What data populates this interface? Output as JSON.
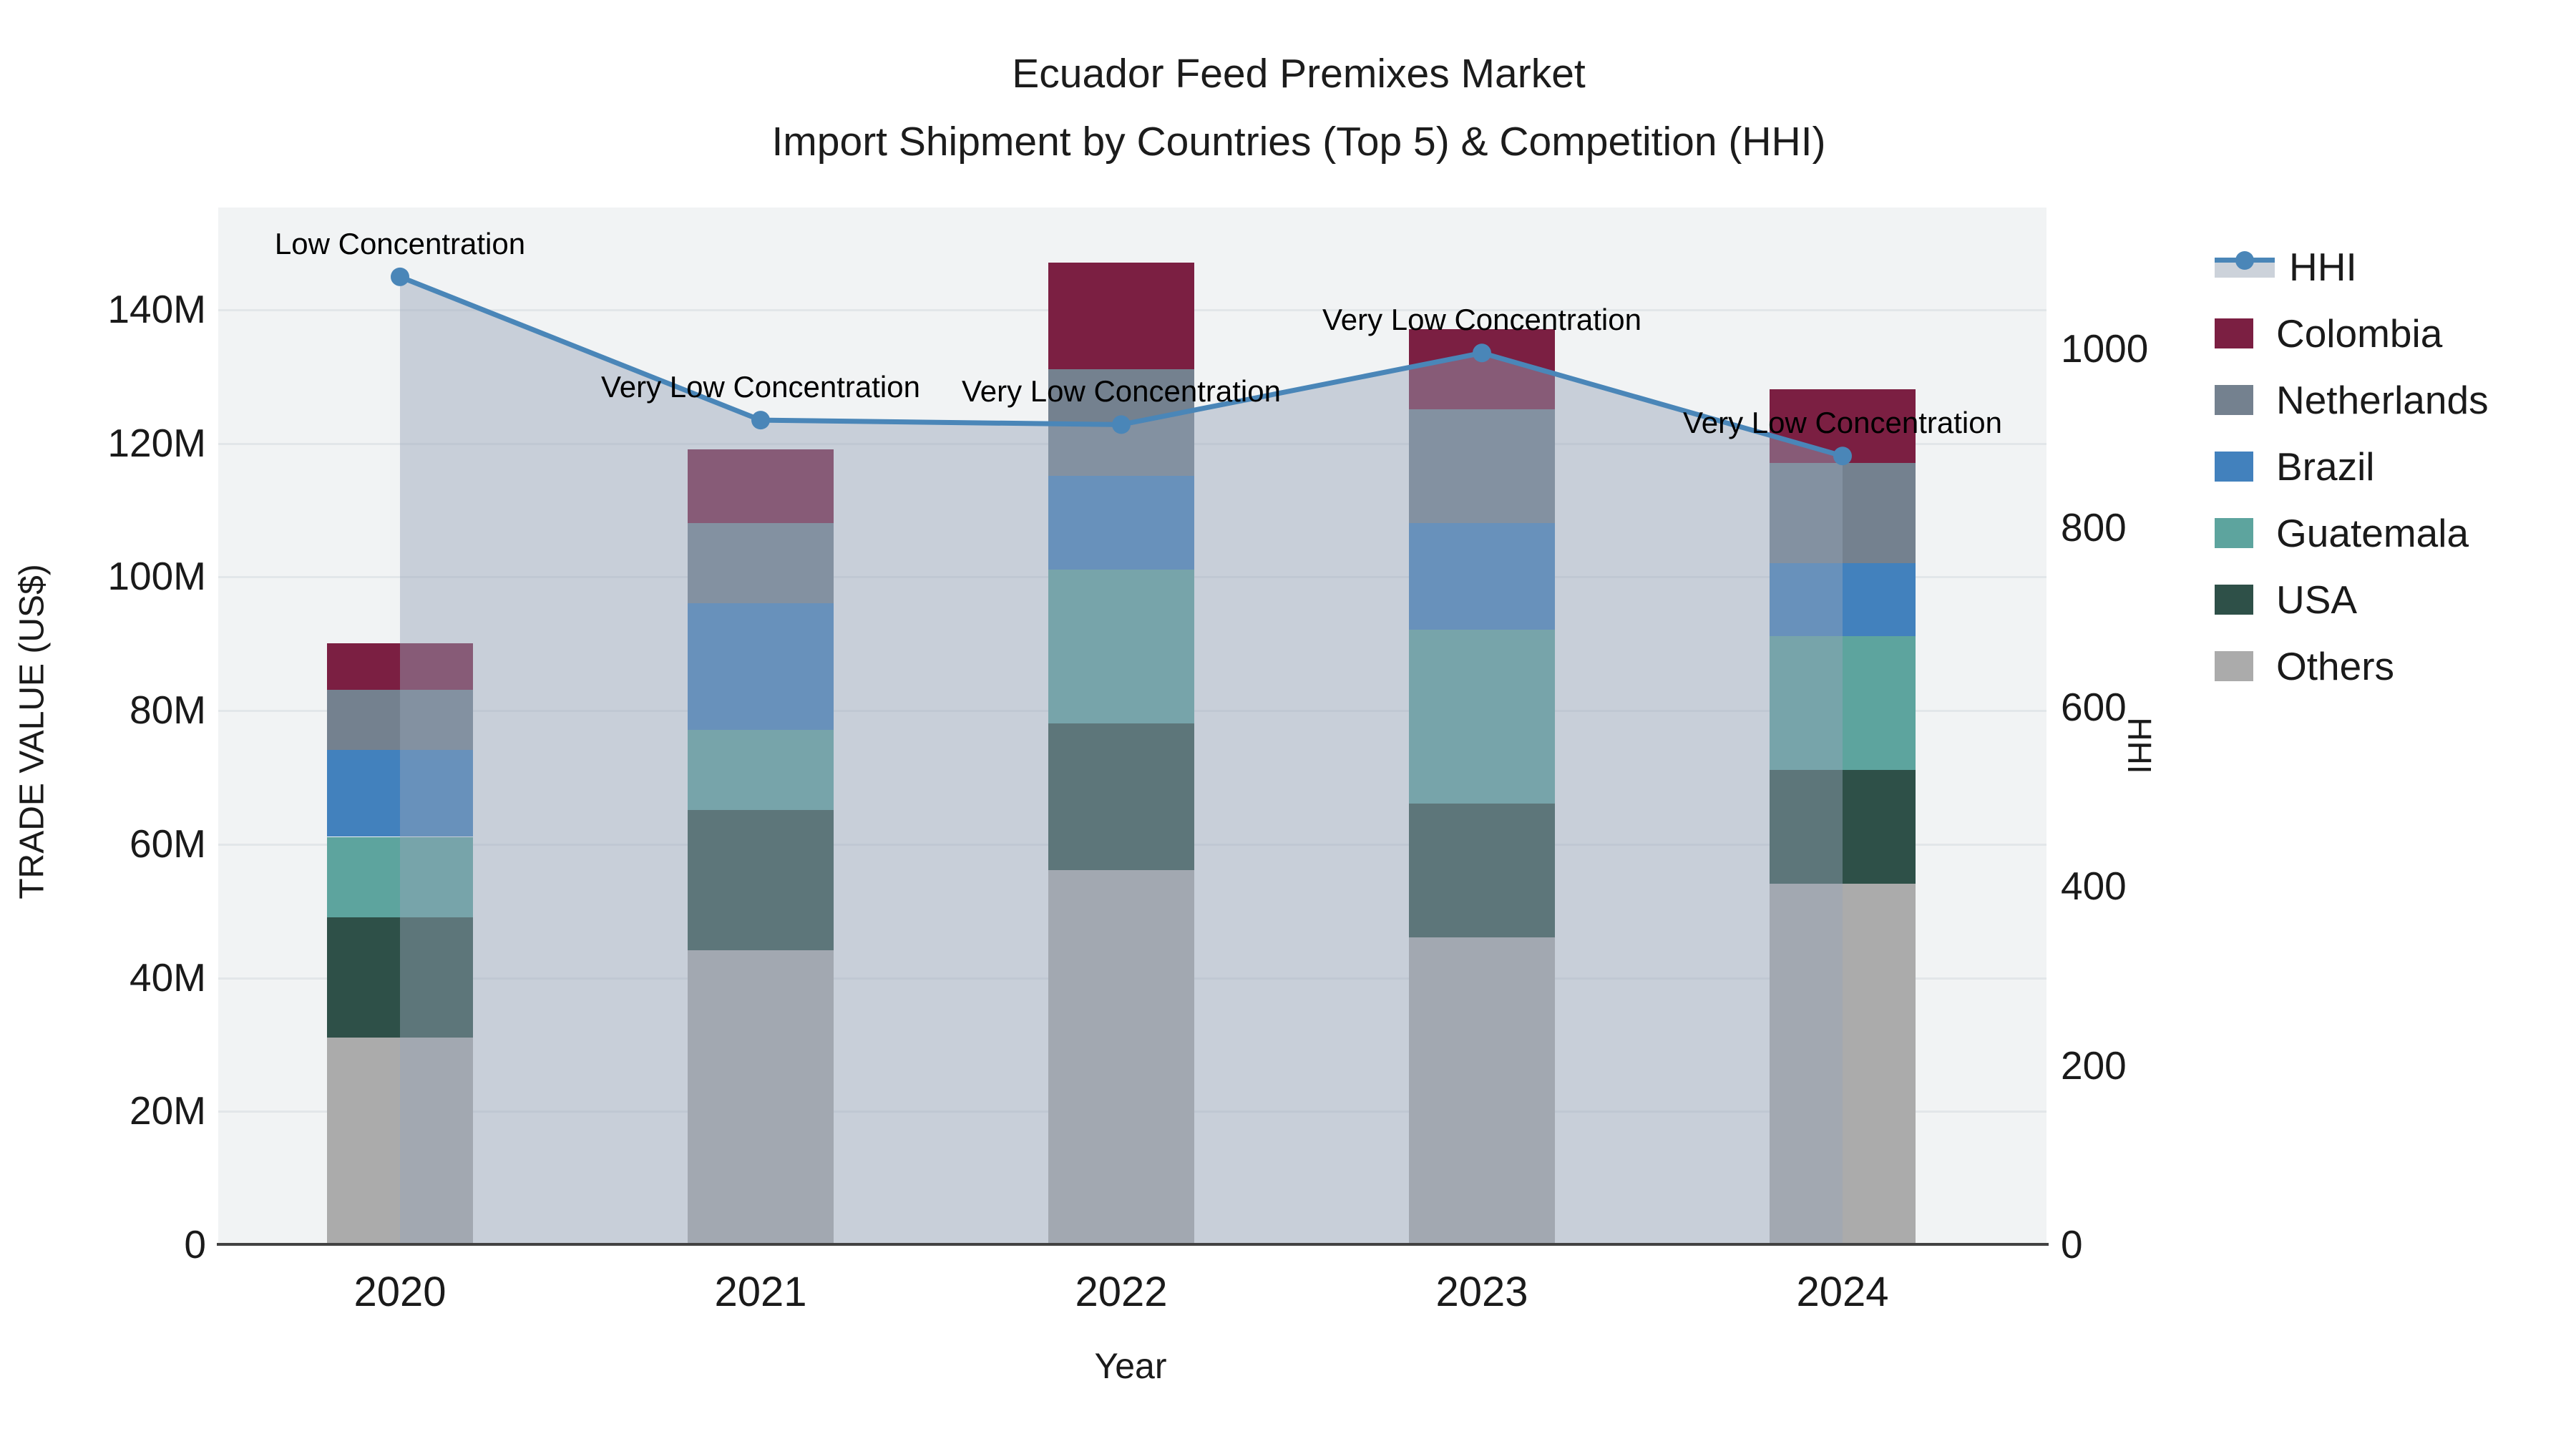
{
  "title": {
    "line1": "Ecuador Feed Premixes Market",
    "line2": "Import Shipment by Countries (Top 5) & Competition (HHI)"
  },
  "axes": {
    "y_left": {
      "title": "TRADE VALUE (US$)",
      "tick_labels": [
        "0",
        "20M",
        "40M",
        "60M",
        "80M",
        "100M",
        "120M",
        "140M"
      ],
      "tick_values": [
        0,
        20,
        40,
        60,
        80,
        100,
        120,
        140
      ],
      "range_max": 155
    },
    "y_right": {
      "title": "HHI",
      "tick_labels": [
        "0",
        "200",
        "400",
        "600",
        "800",
        "1000"
      ],
      "tick_values": [
        0,
        200,
        400,
        600,
        800,
        1000
      ],
      "range_max": 1160
    },
    "x": {
      "title": "Year",
      "categories": [
        "2020",
        "2021",
        "2022",
        "2023",
        "2024"
      ]
    }
  },
  "legend": {
    "items": [
      {
        "label": "HHI",
        "type": "line",
        "color": "#4a86b8"
      },
      {
        "label": "Colombia",
        "type": "bar",
        "color": "#7b1f42"
      },
      {
        "label": "Netherlands",
        "type": "bar",
        "color": "#74818f"
      },
      {
        "label": "Brazil",
        "type": "bar",
        "color": "#4281bd"
      },
      {
        "label": "Guatemala",
        "type": "bar",
        "color": "#5da49e"
      },
      {
        "label": "USA",
        "type": "bar",
        "color": "#2e5048"
      },
      {
        "label": "Others",
        "type": "bar",
        "color": "#ababab"
      }
    ]
  },
  "chart_data": {
    "type": "bar",
    "subtype": "stacked-bar-with-line",
    "title": "Ecuador Feed Premixes Market — Import Shipment by Countries (Top 5) & Competition (HHI)",
    "xlabel": "Year",
    "ylabel_left": "TRADE VALUE (US$)",
    "ylabel_right": "HHI",
    "units_left": "million US$",
    "categories": [
      "2020",
      "2021",
      "2022",
      "2023",
      "2024"
    ],
    "series": [
      {
        "name": "Colombia",
        "color": "#7b1f42",
        "values": [
          7,
          11,
          16,
          12,
          11
        ]
      },
      {
        "name": "Netherlands",
        "color": "#74818f",
        "values": [
          9,
          12,
          16,
          17,
          15
        ]
      },
      {
        "name": "Brazil",
        "color": "#4281bd",
        "values": [
          13,
          19,
          14,
          16,
          11
        ]
      },
      {
        "name": "Guatemala",
        "color": "#5da49e",
        "values": [
          12,
          12,
          23,
          26,
          20
        ]
      },
      {
        "name": "USA",
        "color": "#2e5048",
        "values": [
          18,
          21,
          22,
          20,
          17
        ]
      },
      {
        "name": "Others",
        "color": "#ababab",
        "values": [
          31,
          44,
          56,
          46,
          54
        ]
      }
    ],
    "stack_totals": [
      90,
      119,
      147,
      137,
      128
    ],
    "line_series": {
      "name": "HHI",
      "color": "#4a86b8",
      "fill_color": "#96a5b9",
      "fill_alpha": 0.45,
      "values": [
        1080,
        920,
        915,
        995,
        880
      ]
    },
    "annotations": [
      "Low Concentration",
      "Very Low Concentration",
      "Very Low Concentration",
      "Very Low Concentration",
      "Very Low Concentration"
    ],
    "ylim_left": [
      0,
      155
    ],
    "ylim_right": [
      0,
      1160
    ],
    "grid": "horizontal",
    "legend_position": "right"
  },
  "colors": {
    "plot_background": "#f1f3f4",
    "gridline": "#e2e6e9",
    "axis_line": "#424242",
    "text": "#1a1a1a"
  }
}
